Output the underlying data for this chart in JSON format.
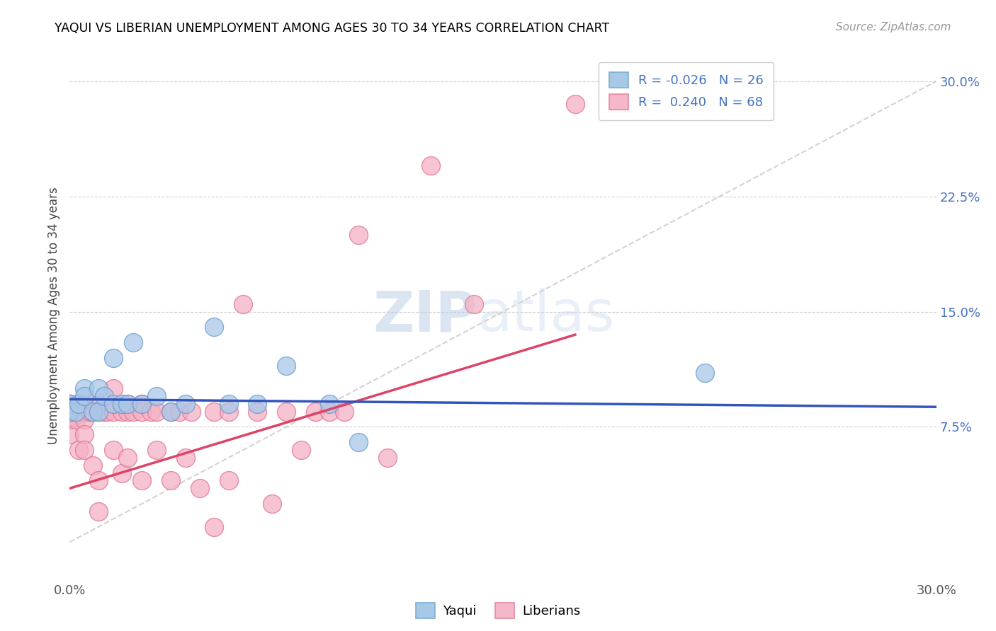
{
  "title": "YAQUI VS LIBERIAN UNEMPLOYMENT AMONG AGES 30 TO 34 YEARS CORRELATION CHART",
  "source": "Source: ZipAtlas.com",
  "ylabel": "Unemployment Among Ages 30 to 34 years",
  "xlim": [
    0.0,
    0.3
  ],
  "ylim": [
    -0.025,
    0.32
  ],
  "xticks": [
    0.0,
    0.05,
    0.1,
    0.15,
    0.2,
    0.25,
    0.3
  ],
  "xticklabels": [
    "0.0%",
    "",
    "",
    "",
    "",
    "",
    "30.0%"
  ],
  "yticks_left": [],
  "yticks_right": [
    0.075,
    0.15,
    0.225,
    0.3
  ],
  "yticklabels_right": [
    "7.5%",
    "15.0%",
    "22.5%",
    "30.0%"
  ],
  "legend_entries": [
    {
      "label": "R = -0.026   N = 26",
      "color_face": "#a8c8e8",
      "color_edge": "#7bafd4"
    },
    {
      "label": "R =  0.240   N = 68",
      "color_face": "#f4b8c8",
      "color_edge": "#e888a0"
    }
  ],
  "watermark_zip": "ZIP",
  "watermark_atlas": "atlas",
  "yaqui_color_face": "#a8c8e8",
  "yaqui_color_edge": "#6699cc",
  "liberian_color_face": "#f4b0c4",
  "liberian_color_edge": "#e07090",
  "trend_yaqui_color": "#3355bb",
  "trend_liberian_color": "#dd4466",
  "dashed_line_color": "#c8c8c8",
  "yaqui_x": [
    0.0,
    0.0,
    0.002,
    0.003,
    0.005,
    0.005,
    0.008,
    0.01,
    0.01,
    0.012,
    0.015,
    0.015,
    0.018,
    0.02,
    0.022,
    0.025,
    0.03,
    0.035,
    0.04,
    0.05,
    0.055,
    0.065,
    0.075,
    0.09,
    0.1,
    0.22
  ],
  "yaqui_y": [
    0.09,
    0.085,
    0.085,
    0.09,
    0.1,
    0.095,
    0.085,
    0.1,
    0.085,
    0.095,
    0.09,
    0.12,
    0.09,
    0.09,
    0.13,
    0.09,
    0.095,
    0.085,
    0.09,
    0.14,
    0.09,
    0.09,
    0.115,
    0.09,
    0.065,
    0.11
  ],
  "liberian_x": [
    0.0,
    0.0,
    0.0,
    0.0,
    0.0,
    0.0,
    0.0,
    0.0,
    0.0,
    0.0,
    0.001,
    0.002,
    0.002,
    0.003,
    0.003,
    0.004,
    0.005,
    0.005,
    0.005,
    0.005,
    0.005,
    0.007,
    0.008,
    0.008,
    0.01,
    0.01,
    0.01,
    0.01,
    0.012,
    0.013,
    0.015,
    0.015,
    0.015,
    0.018,
    0.018,
    0.02,
    0.02,
    0.02,
    0.022,
    0.025,
    0.025,
    0.025,
    0.028,
    0.03,
    0.03,
    0.035,
    0.035,
    0.038,
    0.04,
    0.042,
    0.045,
    0.05,
    0.05,
    0.055,
    0.055,
    0.06,
    0.065,
    0.07,
    0.075,
    0.08,
    0.085,
    0.09,
    0.095,
    0.1,
    0.11,
    0.125,
    0.14,
    0.175
  ],
  "liberian_y": [
    0.09,
    0.085,
    0.085,
    0.08,
    0.085,
    0.09,
    0.09,
    0.085,
    0.08,
    0.07,
    0.085,
    0.085,
    0.08,
    0.09,
    0.06,
    0.085,
    0.085,
    0.09,
    0.08,
    0.07,
    0.06,
    0.085,
    0.085,
    0.05,
    0.09,
    0.085,
    0.04,
    0.02,
    0.085,
    0.085,
    0.1,
    0.085,
    0.06,
    0.085,
    0.045,
    0.09,
    0.085,
    0.055,
    0.085,
    0.09,
    0.085,
    0.04,
    0.085,
    0.085,
    0.06,
    0.085,
    0.04,
    0.085,
    0.055,
    0.085,
    0.035,
    0.085,
    0.01,
    0.085,
    0.04,
    0.155,
    0.085,
    0.025,
    0.085,
    0.06,
    0.085,
    0.085,
    0.085,
    0.2,
    0.055,
    0.245,
    0.155,
    0.285
  ],
  "trend_liberian_x0": 0.0,
  "trend_liberian_y0": 0.035,
  "trend_liberian_x1": 0.175,
  "trend_liberian_y1": 0.135,
  "trend_yaqui_x0": 0.0,
  "trend_yaqui_y0": 0.093,
  "trend_yaqui_x1": 0.3,
  "trend_yaqui_y1": 0.088
}
